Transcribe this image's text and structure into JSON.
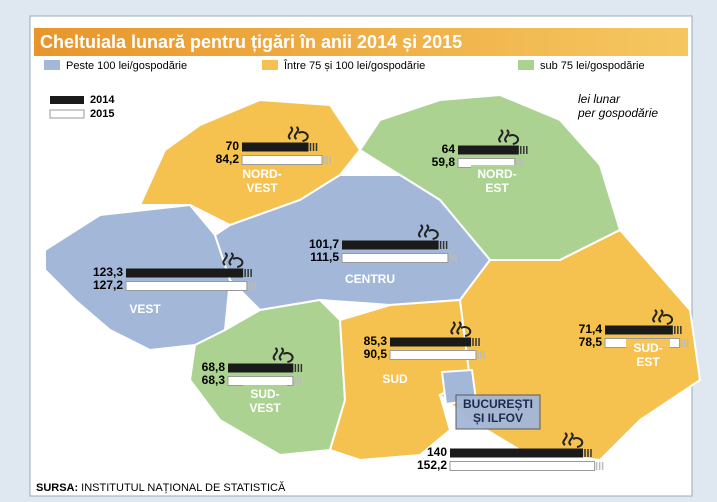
{
  "title": "Cheltuiala lunară pentru țigări în anii 2014 și 2015",
  "legend": [
    {
      "label": "Peste 100 lei/gospodărie",
      "color": "#a3b7d8"
    },
    {
      "label": "Între 75 și 100 lei/gospodărie",
      "color": "#f5c14f"
    },
    {
      "label": "sub 75 lei/gospodărie",
      "color": "#acd291"
    }
  ],
  "years": [
    {
      "label": "2014",
      "color": "#1a1a1a"
    },
    {
      "label": "2015",
      "color": "#ffffff"
    }
  ],
  "unit_note": [
    "lei lunar",
    "per gospodărie"
  ],
  "regions": [
    {
      "name": [
        "NORD-",
        "VEST"
      ],
      "values": [
        70,
        84.2
      ],
      "value_labels": [
        "70",
        "84,2"
      ]
    },
    {
      "name": [
        "NORD-",
        "EST"
      ],
      "values": [
        64,
        59.8
      ],
      "value_labels": [
        "64",
        "59,8"
      ]
    },
    {
      "name": [
        "CENTRU"
      ],
      "values": [
        101.7,
        111.5
      ],
      "value_labels": [
        "101,7",
        "111,5"
      ]
    },
    {
      "name": [
        "VEST"
      ],
      "values": [
        123.3,
        127.2
      ],
      "value_labels": [
        "123,3",
        "127,2"
      ]
    },
    {
      "name": [
        "SUD-",
        "VEST"
      ],
      "values": [
        68.8,
        68.3
      ],
      "value_labels": [
        "68,8",
        "68,3"
      ]
    },
    {
      "name": [
        "SUD"
      ],
      "values": [
        85.3,
        90.5
      ],
      "value_labels": [
        "85,3",
        "90,5"
      ]
    },
    {
      "name": [
        "SUD-",
        "EST"
      ],
      "values": [
        71.4,
        78.5
      ],
      "value_labels": [
        "71,4",
        "78,5"
      ]
    },
    {
      "name": [
        "BUCUREȘTI",
        "ȘI ILFOV"
      ],
      "values": [
        140,
        152.2
      ],
      "value_labels": [
        "140",
        "152,2"
      ]
    }
  ],
  "source": {
    "label": "SURSA:",
    "text": "INSTITUTUL NAȚIONAL DE STATISTICĂ"
  }
}
